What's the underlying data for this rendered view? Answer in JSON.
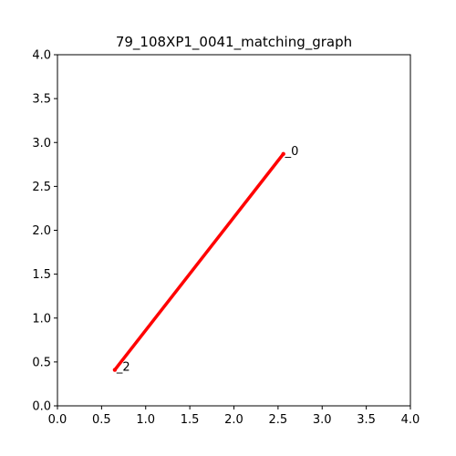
{
  "chart_data": {
    "type": "line",
    "title": "79_108XP1_0041_matching_graph",
    "xlabel": "",
    "ylabel": "",
    "xlim": [
      0.0,
      4.0
    ],
    "ylim": [
      0.0,
      4.0
    ],
    "xticks": [
      "0.0",
      "0.5",
      "1.0",
      "1.5",
      "2.0",
      "2.5",
      "3.0",
      "3.5",
      "4.0"
    ],
    "yticks": [
      "0.0",
      "0.5",
      "1.0",
      "1.5",
      "2.0",
      "2.5",
      "3.0",
      "3.5",
      "4.0"
    ],
    "grid": false,
    "series": [
      {
        "color": "#ff0000",
        "points": [
          {
            "x": 2.56,
            "y": 2.87
          },
          {
            "x": 0.65,
            "y": 0.41
          }
        ]
      }
    ],
    "annotations": [
      {
        "text": "_0",
        "x": 2.56,
        "y": 2.87
      },
      {
        "text": "_2",
        "x": 0.65,
        "y": 0.41
      }
    ]
  }
}
